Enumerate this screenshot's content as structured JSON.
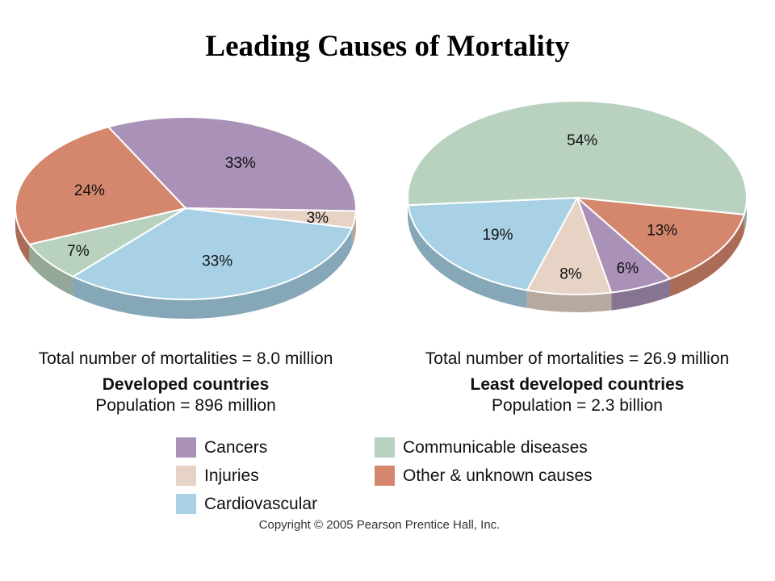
{
  "title": "Leading Causes of Mortality",
  "colors": {
    "cancers": "#a991b8",
    "injuries": "#e6d3c5",
    "cardiovascular": "#a8d1e6",
    "communicable": "#b9d2bf",
    "other": "#d4876c"
  },
  "chart_data": [
    {
      "type": "pie",
      "title": "",
      "total": "Total number of mortalities = 8.0 million",
      "group": "Developed countries",
      "population": "Population = 896 million",
      "slices": [
        {
          "category": "cancers",
          "value": 33,
          "label": "33%"
        },
        {
          "category": "injuries",
          "value": 3,
          "label": "3%"
        },
        {
          "category": "cardiovascular",
          "value": 33,
          "label": "33%"
        },
        {
          "category": "communicable",
          "value": 7,
          "label": "7%"
        },
        {
          "category": "other",
          "value": 24,
          "label": "24%"
        }
      ]
    },
    {
      "type": "pie",
      "title": "",
      "total": "Total number of mortalities = 26.9 million",
      "group": "Least developed countries",
      "population": "Population = 2.3 billion",
      "slices": [
        {
          "category": "other",
          "value": 13,
          "label": "13%"
        },
        {
          "category": "cancers",
          "value": 6,
          "label": "6%"
        },
        {
          "category": "injuries",
          "value": 8,
          "label": "8%"
        },
        {
          "category": "cardiovascular",
          "value": 19,
          "label": "19%"
        },
        {
          "category": "communicable",
          "value": 54,
          "label": "54%"
        }
      ]
    }
  ],
  "legend": [
    {
      "category": "cancers",
      "label": "Cancers"
    },
    {
      "category": "injuries",
      "label": "Injuries"
    },
    {
      "category": "cardiovascular",
      "label": "Cardiovascular"
    },
    {
      "category": "communicable",
      "label": "Communicable diseases"
    },
    {
      "category": "other",
      "label": "Other & unknown causes"
    }
  ],
  "copyright": "Copyright © 2005 Pearson Prentice Hall, Inc."
}
